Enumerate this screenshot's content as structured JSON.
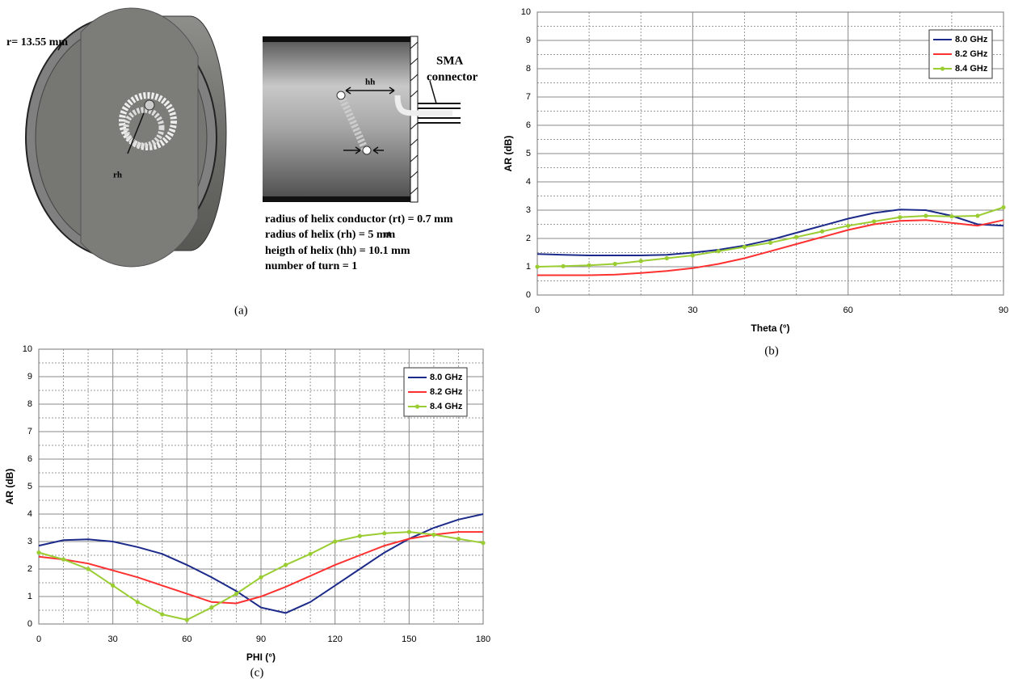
{
  "panel_a": {
    "radius_label": "r= 13.55 mm",
    "rh_label": "rh",
    "hh_label": "hh",
    "rt_label": "rt",
    "connector_label": [
      "SMA",
      "connector"
    ],
    "parameters": [
      "radius of helix conductor (rt) = 0.7 mm",
      "radius of helix (rh) = 5 mm",
      "heigth of helix (hh) = 10.1 mm",
      "number of turn = 1"
    ],
    "caption": "(a)"
  },
  "chart_data": [
    {
      "type": "line",
      "caption": "(b)",
      "xlabel": "Theta (°)",
      "ylabel": "AR (dB)",
      "x": [
        0,
        5,
        10,
        15,
        20,
        25,
        30,
        35,
        40,
        45,
        50,
        55,
        60,
        65,
        70,
        75,
        80,
        85,
        90
      ],
      "series": [
        {
          "name": "8.0 GHz",
          "color": "#1c2a8a",
          "marker": "none",
          "values": [
            1.45,
            1.42,
            1.4,
            1.4,
            1.4,
            1.42,
            1.5,
            1.6,
            1.75,
            1.95,
            2.2,
            2.45,
            2.7,
            2.9,
            3.02,
            3.0,
            2.8,
            2.5,
            2.45
          ]
        },
        {
          "name": "8.2 GHz",
          "color": "#ff3030",
          "marker": "none",
          "values": [
            0.7,
            0.7,
            0.7,
            0.72,
            0.78,
            0.85,
            0.95,
            1.1,
            1.3,
            1.55,
            1.8,
            2.05,
            2.3,
            2.5,
            2.62,
            2.65,
            2.55,
            2.45,
            2.65
          ]
        },
        {
          "name": "8.4 GHz",
          "color": "#9acd32",
          "marker": "circle",
          "values": [
            1.0,
            1.02,
            1.05,
            1.1,
            1.2,
            1.3,
            1.4,
            1.55,
            1.7,
            1.85,
            2.05,
            2.25,
            2.45,
            2.6,
            2.75,
            2.8,
            2.78,
            2.8,
            3.1
          ]
        }
      ],
      "xlim": [
        0,
        90
      ],
      "xticks": [
        0,
        30,
        60,
        90
      ],
      "ylim": [
        0,
        10
      ],
      "yticks": [
        0,
        1,
        2,
        3,
        4,
        5,
        6,
        7,
        8,
        9,
        10
      ],
      "grid": true,
      "legend": "upper right"
    },
    {
      "type": "line",
      "caption": "(c)",
      "xlabel": "PHI (°)",
      "ylabel": "AR (dB)",
      "x": [
        0,
        10,
        20,
        30,
        40,
        50,
        60,
        70,
        80,
        90,
        100,
        110,
        120,
        130,
        140,
        150,
        160,
        170,
        180
      ],
      "series": [
        {
          "name": "8.0 GHz",
          "color": "#1c2a8a",
          "marker": "none",
          "values": [
            2.85,
            3.05,
            3.08,
            3.0,
            2.8,
            2.55,
            2.15,
            1.7,
            1.2,
            0.6,
            0.4,
            0.8,
            1.4,
            2.0,
            2.6,
            3.1,
            3.5,
            3.8,
            4.0
          ]
        },
        {
          "name": "8.2 GHz",
          "color": "#ff3030",
          "marker": "none",
          "values": [
            2.45,
            2.35,
            2.2,
            1.95,
            1.7,
            1.4,
            1.1,
            0.8,
            0.75,
            1.0,
            1.35,
            1.75,
            2.15,
            2.5,
            2.85,
            3.1,
            3.25,
            3.35,
            3.35
          ]
        },
        {
          "name": "8.4 GHz",
          "color": "#9acd32",
          "marker": "circle",
          "values": [
            2.6,
            2.35,
            2.0,
            1.4,
            0.8,
            0.35,
            0.15,
            0.6,
            1.1,
            1.7,
            2.15,
            2.55,
            3.0,
            3.2,
            3.3,
            3.35,
            3.25,
            3.1,
            2.95
          ]
        }
      ],
      "xlim": [
        0,
        180
      ],
      "xticks": [
        0,
        30,
        60,
        90,
        120,
        150,
        180
      ],
      "ylim": [
        0,
        10
      ],
      "yticks": [
        0,
        1,
        2,
        3,
        4,
        5,
        6,
        7,
        8,
        9,
        10
      ],
      "grid": true,
      "legend": "upper right"
    }
  ]
}
